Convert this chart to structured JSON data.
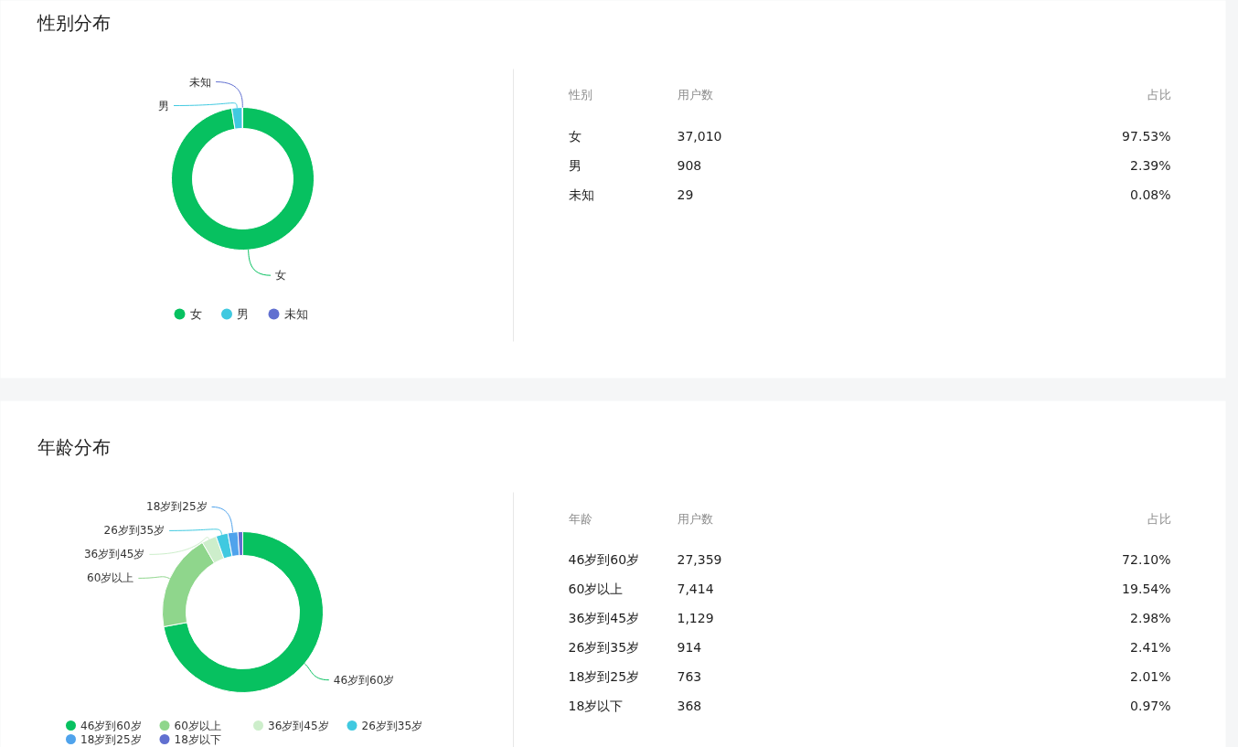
{
  "chart_data": [
    {
      "type": "donut",
      "title": "性别分布",
      "categories": [
        "女",
        "男",
        "未知"
      ],
      "values": [
        97.53,
        2.39,
        0.08
      ],
      "colors": [
        "#07c160",
        "#40c9e0",
        "#6170d0"
      ],
      "legend": "bottom",
      "annotations": [
        "性别",
        "用户数",
        "占比",
        "37,010",
        "97.53%",
        "908",
        "2.39%",
        "29",
        "0.08%"
      ]
    },
    {
      "type": "donut",
      "title": "年龄分布",
      "categories": [
        "46岁到60岁",
        "60岁以上",
        "36岁到45岁",
        "26岁到35岁",
        "18岁到25岁",
        "18岁以下"
      ],
      "values": [
        72.1,
        19.54,
        2.98,
        2.41,
        2.01,
        0.97
      ],
      "colors": [
        "#07c160",
        "#8fd68c",
        "#cdeecb",
        "#40c9e0",
        "#4fa3ec",
        "#6170d0"
      ],
      "legend": "bottom",
      "annotations": [
        "年龄",
        "用户数",
        "占比",
        "27,359",
        "72.10%",
        "7,414",
        "19.54%",
        "1,129",
        "2.98%",
        "914",
        "2.41%",
        "763",
        "2.01%",
        "368",
        "0.97%"
      ]
    }
  ]
}
